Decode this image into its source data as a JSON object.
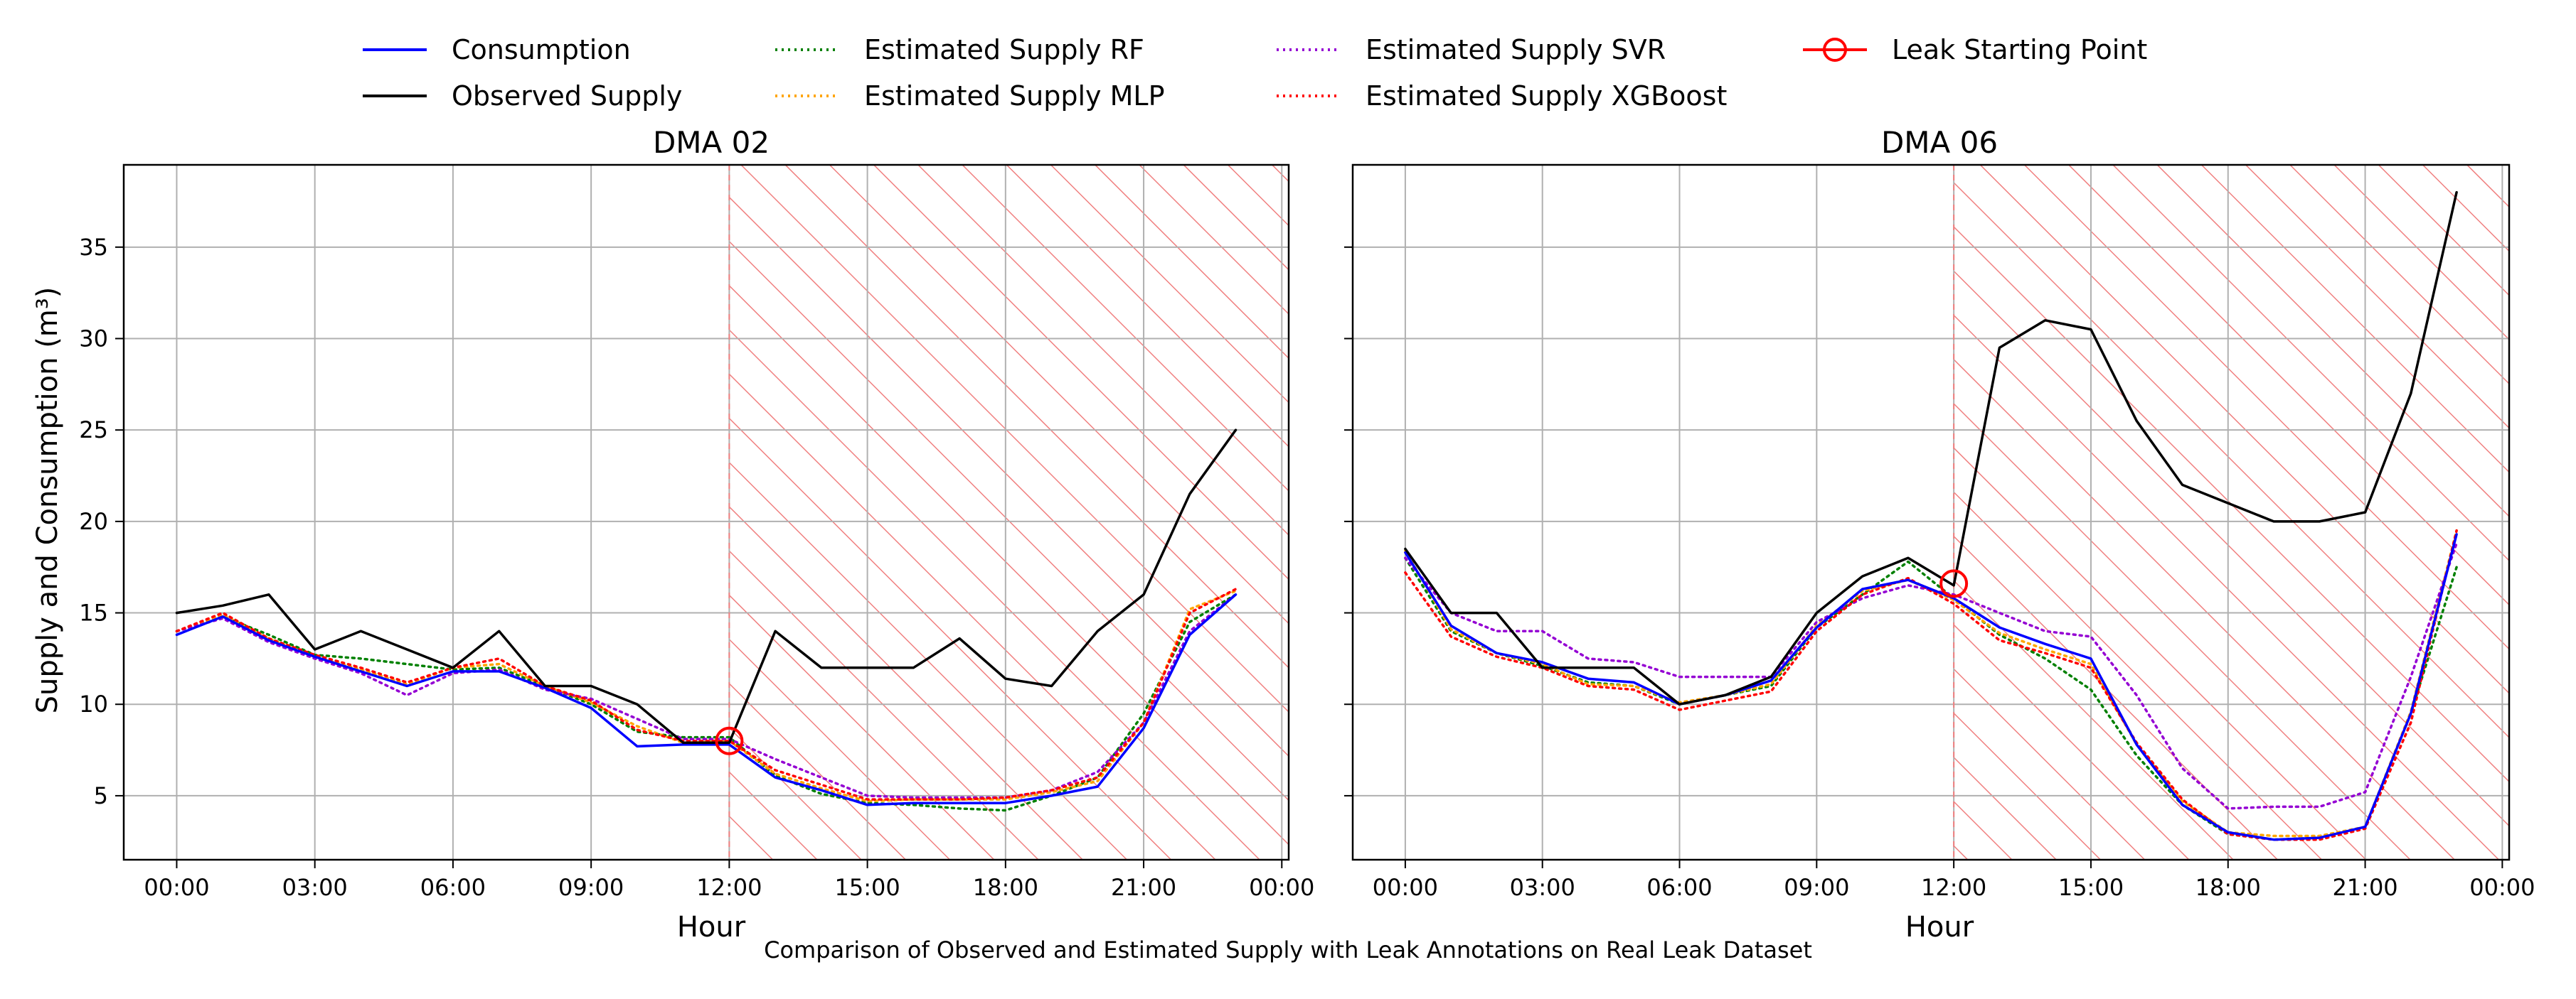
{
  "figure_caption": "Comparison of Observed and Estimated Supply with Leak Annotations on Real Leak Dataset",
  "legend": [
    {
      "label": "Consumption",
      "color": "#0000ff",
      "style": "solid",
      "marker": "none"
    },
    {
      "label": "Observed Supply",
      "color": "#000000",
      "style": "solid",
      "marker": "none"
    },
    {
      "label": "Estimated Supply RF",
      "color": "#008000",
      "style": "dotted",
      "marker": "none"
    },
    {
      "label": "Estimated Supply MLP",
      "color": "#ffa500",
      "style": "dotted",
      "marker": "none"
    },
    {
      "label": "Estimated Supply SVR",
      "color": "#9400d3",
      "style": "dotted",
      "marker": "none"
    },
    {
      "label": "Estimated Supply XGBoost",
      "color": "#ff0000",
      "style": "dotted",
      "marker": "none"
    },
    {
      "label": "Leak Starting Point",
      "color": "#ff0000",
      "style": "solid",
      "marker": "circle"
    }
  ],
  "colors": {
    "hatch": "#f08080",
    "grid": "#b0b0b0"
  },
  "chart_data": [
    {
      "type": "line",
      "title": "DMA 02",
      "xlabel": "Hour",
      "ylabel": "Supply and Consumption (m³)",
      "ylim": [
        1.5,
        39.5
      ],
      "xlim": [
        -1.15,
        24.15
      ],
      "xticks": [
        0,
        3,
        6,
        9,
        12,
        15,
        18,
        21,
        24
      ],
      "xtick_labels": [
        "00:00",
        "03:00",
        "06:00",
        "09:00",
        "12:00",
        "15:00",
        "18:00",
        "21:00",
        "00:00"
      ],
      "yticks": [
        5,
        10,
        15,
        20,
        25,
        30,
        35
      ],
      "ytick_labels": [
        "5",
        "10",
        "15",
        "20",
        "25",
        "30",
        "35"
      ],
      "grid": true,
      "leak_region_start": 12,
      "leak_point": {
        "x": 12,
        "y": 8.0
      },
      "x": [
        0,
        1,
        2,
        3,
        4,
        5,
        6,
        7,
        8,
        9,
        10,
        11,
        12,
        13,
        14,
        15,
        16,
        17,
        18,
        19,
        20,
        21,
        22,
        23
      ],
      "series": [
        {
          "name": "Observed Supply",
          "values": [
            15.0,
            15.4,
            16.0,
            13.0,
            14.0,
            13.0,
            12.0,
            14.0,
            11.0,
            11.0,
            10.0,
            7.9,
            7.9,
            14.0,
            12.0,
            12.0,
            12.0,
            13.6,
            11.4,
            11.0,
            14.0,
            16.0,
            21.5,
            25.0
          ]
        },
        {
          "name": "Consumption",
          "values": [
            13.8,
            14.8,
            13.5,
            12.6,
            11.8,
            11.0,
            11.8,
            11.8,
            10.9,
            9.8,
            7.7,
            7.8,
            7.8,
            6.0,
            5.3,
            4.5,
            4.6,
            4.6,
            4.6,
            5.0,
            5.5,
            8.7,
            13.8,
            16.0
          ]
        },
        {
          "name": "Estimated Supply RF",
          "values": [
            14.0,
            14.8,
            13.8,
            12.7,
            12.5,
            12.2,
            11.9,
            12.0,
            11.0,
            10.0,
            8.5,
            8.2,
            8.2,
            6.1,
            5.1,
            4.6,
            4.5,
            4.3,
            4.2,
            5.0,
            6.0,
            9.5,
            14.5,
            16.0
          ]
        },
        {
          "name": "Estimated Supply MLP",
          "values": [
            14.0,
            14.9,
            13.6,
            12.6,
            11.9,
            11.1,
            12.0,
            12.2,
            11.0,
            10.1,
            8.8,
            7.9,
            8.0,
            6.2,
            5.4,
            4.7,
            4.8,
            4.8,
            4.8,
            5.2,
            5.8,
            9.0,
            15.2,
            16.2
          ]
        },
        {
          "name": "Estimated Supply SVR",
          "values": [
            14.0,
            14.7,
            13.4,
            12.5,
            11.7,
            10.5,
            11.7,
            11.9,
            10.8,
            10.3,
            9.2,
            8.1,
            8.1,
            7.0,
            6.0,
            5.0,
            4.9,
            4.9,
            4.9,
            5.3,
            6.3,
            9.0,
            14.0,
            16.0
          ]
        },
        {
          "name": "Estimated Supply XGBoost",
          "values": [
            14.0,
            15.0,
            13.6,
            12.7,
            12.0,
            11.2,
            12.0,
            12.5,
            11.0,
            10.2,
            8.6,
            8.0,
            8.0,
            6.4,
            5.6,
            4.8,
            4.8,
            4.8,
            4.9,
            5.3,
            6.0,
            9.0,
            15.0,
            16.3
          ]
        }
      ]
    },
    {
      "type": "line",
      "title": "DMA 06",
      "xlabel": "Hour",
      "ylabel": "",
      "ylim": [
        1.5,
        39.5
      ],
      "xlim": [
        -1.15,
        24.15
      ],
      "xticks": [
        0,
        3,
        6,
        9,
        12,
        15,
        18,
        21,
        24
      ],
      "xtick_labels": [
        "00:00",
        "03:00",
        "06:00",
        "09:00",
        "12:00",
        "15:00",
        "18:00",
        "21:00",
        "00:00"
      ],
      "yticks": [
        5,
        10,
        15,
        20,
        25,
        30,
        35
      ],
      "ytick_labels": [],
      "grid": true,
      "leak_region_start": 12,
      "leak_point": {
        "x": 12,
        "y": 16.6
      },
      "x": [
        0,
        1,
        2,
        3,
        4,
        5,
        6,
        7,
        8,
        9,
        10,
        11,
        12,
        13,
        14,
        15,
        16,
        17,
        18,
        19,
        20,
        21,
        22,
        23
      ],
      "series": [
        {
          "name": "Observed Supply",
          "values": [
            18.5,
            15.0,
            15.0,
            12.0,
            12.0,
            12.0,
            10.0,
            10.5,
            11.5,
            15.0,
            17.0,
            18.0,
            16.5,
            29.5,
            31.0,
            30.5,
            25.5,
            22.0,
            21.0,
            20.0,
            20.0,
            20.5,
            27.0,
            38.0
          ]
        },
        {
          "name": "Consumption",
          "values": [
            18.3,
            14.3,
            12.8,
            12.3,
            11.4,
            11.2,
            10.0,
            10.5,
            11.3,
            14.2,
            16.3,
            16.8,
            15.8,
            14.2,
            13.3,
            12.5,
            7.8,
            4.5,
            3.0,
            2.6,
            2.7,
            3.3,
            9.5,
            19.3
          ]
        },
        {
          "name": "Estimated Supply RF",
          "values": [
            18.0,
            14.0,
            12.8,
            12.1,
            11.2,
            11.0,
            10.0,
            10.5,
            11.0,
            14.2,
            16.0,
            17.8,
            15.8,
            13.8,
            12.5,
            10.8,
            7.2,
            4.5,
            2.9,
            2.6,
            2.7,
            3.3,
            9.5,
            17.5
          ]
        },
        {
          "name": "Estimated Supply MLP",
          "values": [
            18.4,
            14.1,
            12.8,
            12.2,
            11.1,
            11.0,
            10.1,
            10.5,
            11.1,
            14.3,
            16.2,
            16.8,
            15.7,
            13.9,
            13.0,
            12.2,
            7.8,
            4.7,
            3.0,
            2.8,
            2.8,
            3.3,
            9.6,
            19.5
          ]
        },
        {
          "name": "Estimated Supply SVR",
          "values": [
            18.0,
            15.0,
            14.0,
            14.0,
            12.5,
            12.3,
            11.5,
            11.5,
            11.5,
            14.5,
            15.8,
            16.5,
            16.0,
            15.0,
            14.0,
            13.7,
            10.5,
            6.5,
            4.3,
            4.4,
            4.4,
            5.2,
            11.5,
            18.8
          ]
        },
        {
          "name": "Estimated Supply XGBoost",
          "values": [
            17.2,
            13.7,
            12.6,
            12.0,
            11.0,
            10.8,
            9.7,
            10.2,
            10.7,
            14.0,
            16.0,
            16.9,
            15.5,
            13.5,
            12.8,
            12.0,
            7.9,
            4.8,
            2.9,
            2.6,
            2.6,
            3.2,
            9.0,
            19.5
          ]
        }
      ]
    }
  ]
}
